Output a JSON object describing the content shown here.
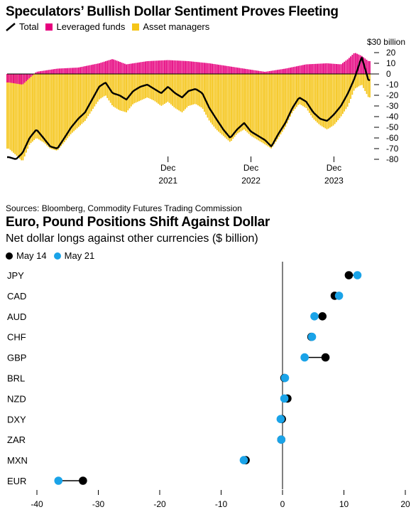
{
  "top_chart": {
    "title": "Speculators’ Bullish Dollar Sentiment Proves Fleeting",
    "legend": [
      {
        "label": "Total",
        "type": "line",
        "color": "#000000"
      },
      {
        "label": "Leveraged funds",
        "type": "square",
        "color": "#e6007e"
      },
      {
        "label": "Asset managers",
        "type": "square",
        "color": "#f5c518"
      }
    ],
    "unit_label": "$30 billion",
    "source": "Sources: Bloomberg, Commodity Futures Trading Commission",
    "chart_data": {
      "type": "bar",
      "x_labels": [
        {
          "month": "Dec",
          "year": "2021",
          "date": "2021-12"
        },
        {
          "month": "Dec",
          "year": "2022",
          "date": "2022-12"
        },
        {
          "month": "Dec",
          "year": "2023",
          "date": "2023-12"
        }
      ],
      "y_ticks": [
        30,
        20,
        10,
        0,
        -10,
        -20,
        -30,
        -40,
        -50,
        -60,
        -70,
        -80
      ],
      "ylim": [
        -82,
        32
      ],
      "xlim": [
        "2020-01-07",
        "2024-05-21"
      ],
      "series": [
        {
          "name": "Leveraged funds",
          "color": "#e6007e",
          "anchors": [
            [
              "2020-01",
              -8
            ],
            [
              "2020-03",
              -10
            ],
            [
              "2020-05",
              2
            ],
            [
              "2020-08",
              5
            ],
            [
              "2020-11",
              6
            ],
            [
              "2021-02",
              10
            ],
            [
              "2021-04",
              14
            ],
            [
              "2021-06",
              9
            ],
            [
              "2021-09",
              12
            ],
            [
              "2021-12",
              13
            ],
            [
              "2022-03",
              12
            ],
            [
              "2022-06",
              10
            ],
            [
              "2022-09",
              7
            ],
            [
              "2022-12",
              4
            ],
            [
              "2023-02",
              2
            ],
            [
              "2023-05",
              5
            ],
            [
              "2023-08",
              9
            ],
            [
              "2023-11",
              10
            ],
            [
              "2024-01",
              9
            ],
            [
              "2024-02",
              14
            ],
            [
              "2024-03",
              20
            ],
            [
              "2024-04",
              17
            ],
            [
              "2024-05",
              12
            ]
          ]
        },
        {
          "name": "Asset managers",
          "color": "#f5c518",
          "anchors": [
            [
              "2020-01",
              -70
            ],
            [
              "2020-02",
              -76
            ],
            [
              "2020-03",
              -82
            ],
            [
              "2020-04",
              -66
            ],
            [
              "2020-05",
              -60
            ],
            [
              "2020-06",
              -64
            ],
            [
              "2020-07",
              -70
            ],
            [
              "2020-08",
              -72
            ],
            [
              "2020-09",
              -64
            ],
            [
              "2020-10",
              -56
            ],
            [
              "2020-11",
              -50
            ],
            [
              "2020-12",
              -44
            ],
            [
              "2021-01",
              -34
            ],
            [
              "2021-02",
              -24
            ],
            [
              "2021-03",
              -20
            ],
            [
              "2021-04",
              -30
            ],
            [
              "2021-05",
              -34
            ],
            [
              "2021-06",
              -36
            ],
            [
              "2021-07",
              -28
            ],
            [
              "2021-08",
              -25
            ],
            [
              "2021-09",
              -22
            ],
            [
              "2021-10",
              -25
            ],
            [
              "2021-11",
              -30
            ],
            [
              "2021-12",
              -26
            ],
            [
              "2022-01",
              -32
            ],
            [
              "2022-02",
              -36
            ],
            [
              "2022-03",
              -30
            ],
            [
              "2022-04",
              -28
            ],
            [
              "2022-05",
              -32
            ],
            [
              "2022-06",
              -44
            ],
            [
              "2022-07",
              -52
            ],
            [
              "2022-08",
              -58
            ],
            [
              "2022-09",
              -64
            ],
            [
              "2022-10",
              -56
            ],
            [
              "2022-11",
              -52
            ],
            [
              "2022-12",
              -58
            ],
            [
              "2023-01",
              -62
            ],
            [
              "2023-02",
              -66
            ],
            [
              "2023-03",
              -70
            ],
            [
              "2023-04",
              -60
            ],
            [
              "2023-05",
              -50
            ],
            [
              "2023-06",
              -36
            ],
            [
              "2023-07",
              -28
            ],
            [
              "2023-08",
              -32
            ],
            [
              "2023-09",
              -42
            ],
            [
              "2023-10",
              -48
            ],
            [
              "2023-11",
              -52
            ],
            [
              "2023-12",
              -48
            ],
            [
              "2024-01",
              -40
            ],
            [
              "2024-02",
              -30
            ],
            [
              "2024-03",
              -14
            ],
            [
              "2024-04",
              -10
            ],
            [
              "2024-05",
              -22
            ]
          ]
        },
        {
          "name": "Total",
          "color": "#000000",
          "anchors": [
            [
              "2020-01",
              -78
            ],
            [
              "2020-02",
              -80
            ],
            [
              "2020-03",
              -74
            ],
            [
              "2020-04",
              -60
            ],
            [
              "2020-05",
              -52
            ],
            [
              "2020-06",
              -60
            ],
            [
              "2020-07",
              -68
            ],
            [
              "2020-08",
              -70
            ],
            [
              "2020-09",
              -60
            ],
            [
              "2020-10",
              -50
            ],
            [
              "2020-11",
              -42
            ],
            [
              "2020-12",
              -36
            ],
            [
              "2021-01",
              -24
            ],
            [
              "2021-02",
              -12
            ],
            [
              "2021-03",
              -8
            ],
            [
              "2021-04",
              -18
            ],
            [
              "2021-05",
              -20
            ],
            [
              "2021-06",
              -24
            ],
            [
              "2021-07",
              -16
            ],
            [
              "2021-08",
              -12
            ],
            [
              "2021-09",
              -10
            ],
            [
              "2021-10",
              -14
            ],
            [
              "2021-11",
              -18
            ],
            [
              "2021-12",
              -12
            ],
            [
              "2022-01",
              -18
            ],
            [
              "2022-02",
              -22
            ],
            [
              "2022-03",
              -16
            ],
            [
              "2022-04",
              -14
            ],
            [
              "2022-05",
              -18
            ],
            [
              "2022-06",
              -32
            ],
            [
              "2022-07",
              -42
            ],
            [
              "2022-08",
              -52
            ],
            [
              "2022-09",
              -60
            ],
            [
              "2022-10",
              -52
            ],
            [
              "2022-11",
              -46
            ],
            [
              "2022-12",
              -54
            ],
            [
              "2023-01",
              -58
            ],
            [
              "2023-02",
              -62
            ],
            [
              "2023-03",
              -68
            ],
            [
              "2023-04",
              -56
            ],
            [
              "2023-05",
              -46
            ],
            [
              "2023-06",
              -32
            ],
            [
              "2023-07",
              -22
            ],
            [
              "2023-08",
              -26
            ],
            [
              "2023-09",
              -36
            ],
            [
              "2023-10",
              -42
            ],
            [
              "2023-11",
              -44
            ],
            [
              "2023-12",
              -38
            ],
            [
              "2024-01",
              -30
            ],
            [
              "2024-02",
              -18
            ],
            [
              "2024-03",
              -4
            ],
            [
              "2024-04",
              16
            ],
            [
              "2024-05",
              -6
            ]
          ]
        }
      ]
    }
  },
  "bottom_chart": {
    "title": "Euro, Pound Positions Shift Against Dollar",
    "subtitle": "Net dollar longs against other currencies ($ billion)",
    "legend": [
      {
        "label": "May 14",
        "color": "#000000"
      },
      {
        "label": "May 21",
        "color": "#1aa3e8"
      }
    ],
    "chart_data": {
      "type": "dot",
      "categories": [
        "JPY",
        "CAD",
        "AUD",
        "CHF",
        "GBP",
        "BRL",
        "NZD",
        "DXY",
        "ZAR",
        "MXN",
        "EUR"
      ],
      "series": [
        {
          "name": "May 14",
          "color": "#000000",
          "values": [
            10.8,
            8.5,
            6.5,
            4.7,
            7.0,
            0.3,
            0.8,
            -0.1,
            -0.2,
            -6.0,
            -32.5
          ]
        },
        {
          "name": "May 21",
          "color": "#1aa3e8",
          "values": [
            12.2,
            9.2,
            5.2,
            4.8,
            3.6,
            0.4,
            0.3,
            -0.3,
            -0.2,
            -6.3,
            -36.5
          ]
        }
      ],
      "x_ticks": [
        -40,
        -30,
        -20,
        -10,
        0,
        10,
        20
      ],
      "xlim": [
        -40,
        20
      ]
    }
  }
}
